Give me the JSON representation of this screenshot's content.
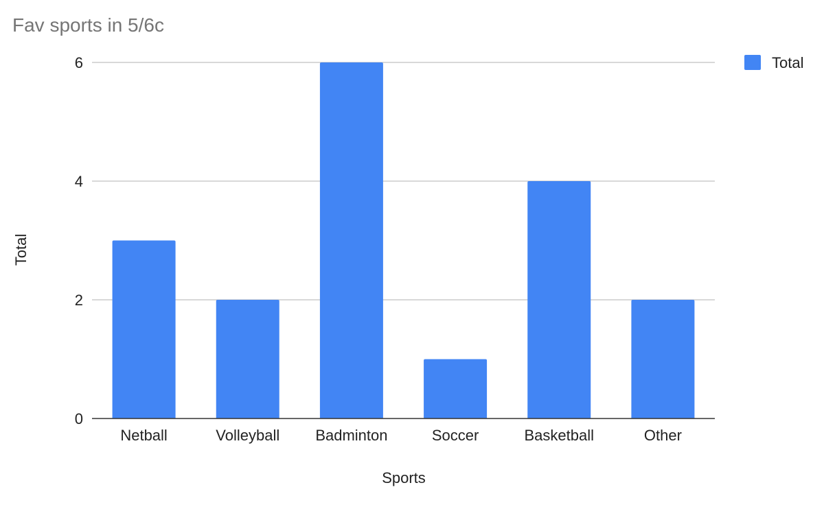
{
  "chart_data": {
    "type": "bar",
    "title": "Fav sports in 5/6c",
    "xlabel": "Sports",
    "ylabel": "Total",
    "categories": [
      "Netball",
      "Volleyball",
      "Badminton",
      "Soccer",
      "Basketball",
      "Other"
    ],
    "series": [
      {
        "name": "Total",
        "values": [
          3,
          2,
          6,
          1,
          4,
          2
        ],
        "color": "#4285f4"
      }
    ],
    "ylim": [
      0,
      6
    ],
    "yticks": [
      "0",
      "2",
      "4",
      "6"
    ],
    "grid": true,
    "legend": "right",
    "colors": {
      "gridline": "#cccccc",
      "baseline": "#333333",
      "title": "#757575",
      "text": "#222222"
    }
  }
}
